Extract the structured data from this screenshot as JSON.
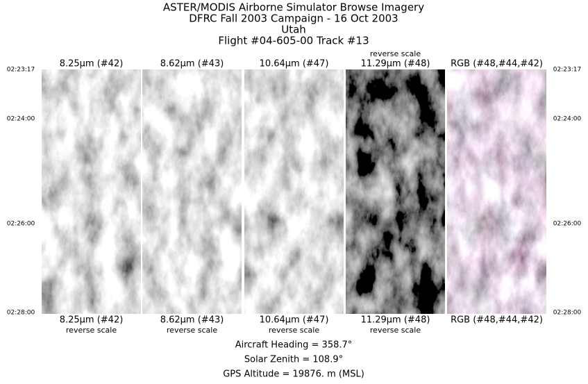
{
  "header": {
    "lines": [
      "ASTER/MODIS Airborne Simulator Browse Imagery",
      "DFRC Fall 2003 Campaign - 16 Oct 2003",
      "Utah",
      "Flight #04-605-00 Track #13"
    ]
  },
  "panels": [
    {
      "top_label": "8.25μm (#42)",
      "bottom_label": "8.25μm (#42)",
      "bottom_note": "reverse scale"
    },
    {
      "top_label": "8.62μm (#43)",
      "bottom_label": "8.62μm (#43)",
      "bottom_note": "reverse scale"
    },
    {
      "top_label": "10.64μm (#47)",
      "bottom_label": "10.64μm (#47)",
      "bottom_note": "reverse scale"
    },
    {
      "top_note": "reverse scale",
      "top_label": "11.29μm (#48)",
      "bottom_label": "11.29μm (#48)",
      "bottom_note": "reverse scale"
    },
    {
      "top_label": "RGB (#48,#44,#42)",
      "bottom_label": "RGB (#48,#44,#42)"
    }
  ],
  "times": [
    "02:23:17",
    "02:24:00",
    "02:26:00",
    "02:28:00"
  ],
  "footer": {
    "lines": [
      "Aircraft Heading =  358.7°",
      "Solar Zenith =  108.9°",
      "GPS Altitude =  19876. m (MSL)"
    ]
  }
}
